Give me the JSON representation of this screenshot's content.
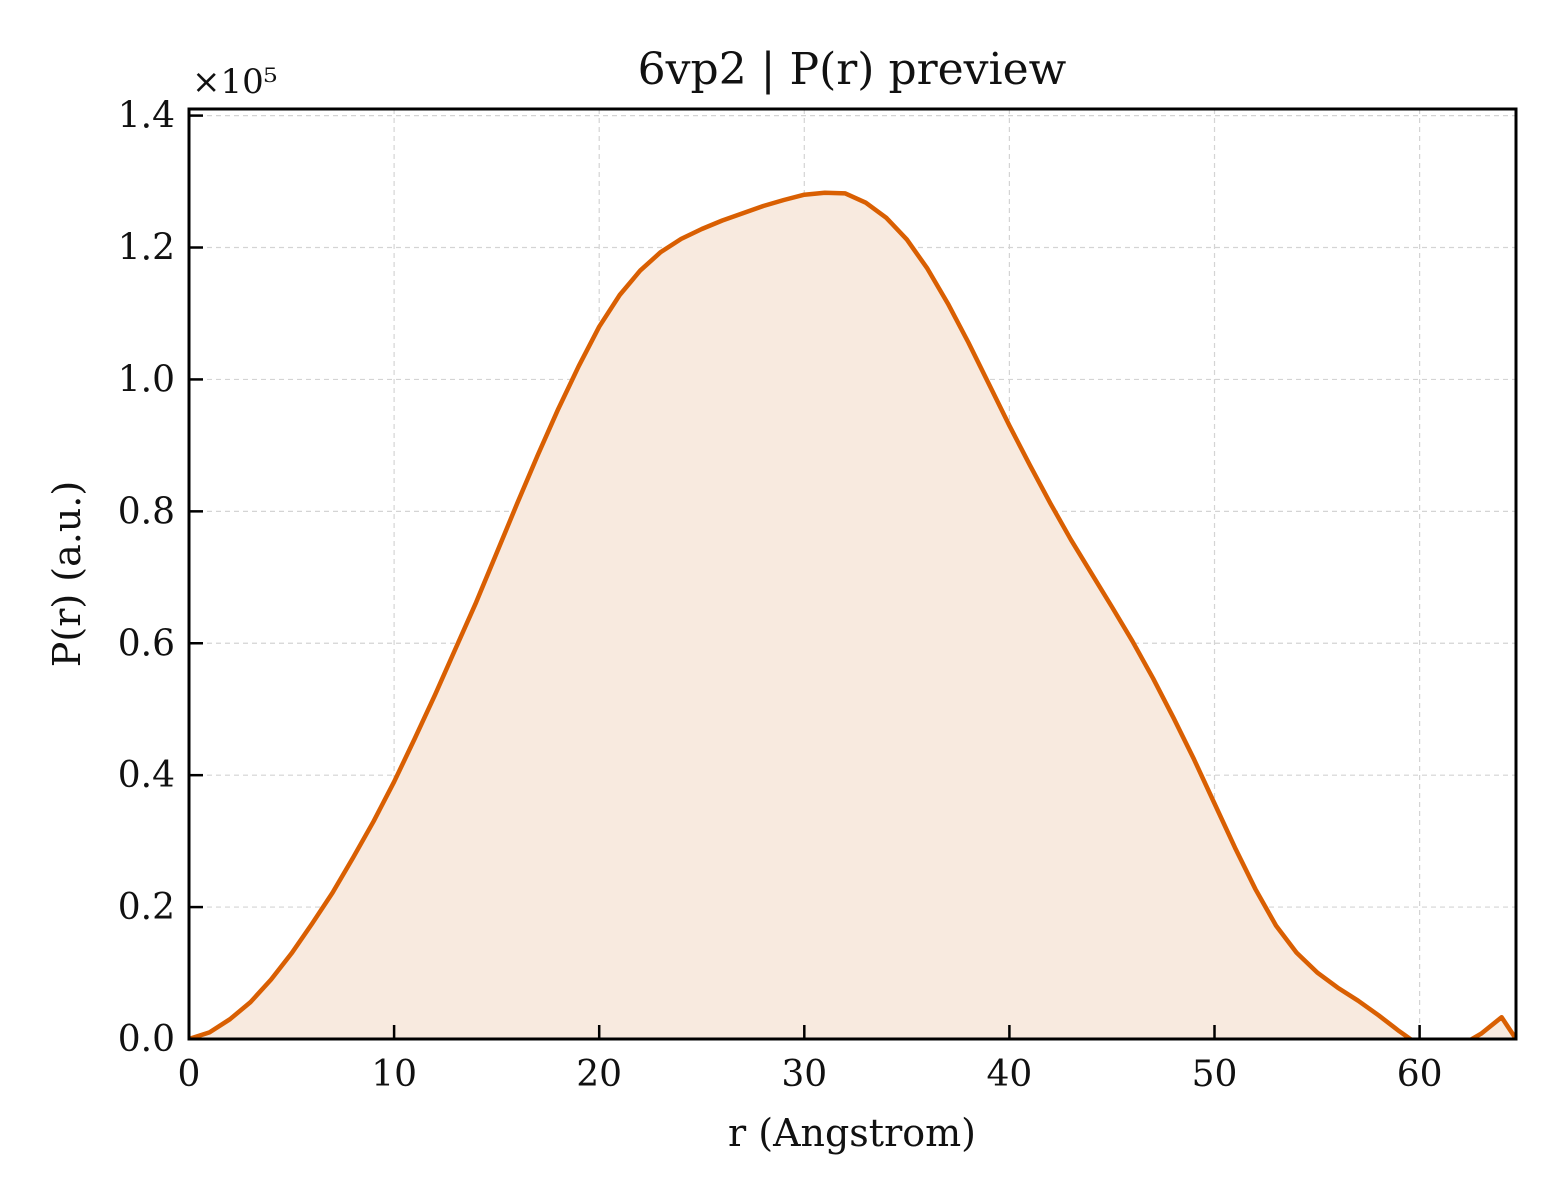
{
  "chart_data": {
    "type": "area",
    "title": "6vp2 | P(r) preview",
    "xlabel": "r (Angstrom)",
    "ylabel": "P(r) (a.u.)",
    "y_multiplier_label": "×10⁵",
    "xlim": [
      0,
      64.7
    ],
    "ylim": [
      0,
      1.41
    ],
    "x_ticks": [
      0,
      10,
      20,
      30,
      40,
      50,
      60
    ],
    "x_tick_labels": [
      "0",
      "10",
      "20",
      "30",
      "40",
      "50",
      "60"
    ],
    "y_ticks": [
      0.0,
      0.2,
      0.4,
      0.6,
      0.8,
      1.0,
      1.2,
      1.4
    ],
    "y_tick_labels": [
      "0.0",
      "0.2",
      "0.4",
      "0.6",
      "0.8",
      "1.0",
      "1.2",
      "1.4"
    ],
    "grid": true,
    "line_color": "#d95f02",
    "fill_color": "#f8eadf",
    "series": [
      {
        "x": [
          0,
          1,
          2,
          3,
          4,
          5,
          6,
          7,
          8,
          9,
          10,
          11,
          12,
          13,
          14,
          15,
          16,
          17,
          18,
          19,
          20,
          21,
          22,
          23,
          24,
          25,
          26,
          27,
          28,
          29,
          30,
          31,
          32,
          33,
          34,
          35,
          36,
          37,
          38,
          39,
          40,
          41,
          42,
          43,
          44,
          45,
          46,
          47,
          48,
          49,
          50,
          51,
          52,
          53,
          54,
          55,
          56,
          57,
          58,
          59,
          60,
          61,
          62,
          63,
          64,
          64.7
        ],
        "y": [
          0.0,
          0.01,
          0.03,
          0.056,
          0.09,
          0.13,
          0.175,
          0.222,
          0.275,
          0.33,
          0.39,
          0.455,
          0.522,
          0.592,
          0.662,
          0.737,
          0.812,
          0.885,
          0.955,
          1.02,
          1.08,
          1.128,
          1.165,
          1.193,
          1.213,
          1.228,
          1.241,
          1.252,
          1.263,
          1.272,
          1.28,
          1.283,
          1.282,
          1.268,
          1.245,
          1.212,
          1.168,
          1.115,
          1.056,
          0.993,
          0.93,
          0.87,
          0.812,
          0.757,
          0.706,
          0.655,
          0.603,
          0.547,
          0.487,
          0.424,
          0.357,
          0.29,
          0.227,
          0.172,
          0.131,
          0.101,
          0.078,
          0.058,
          0.036,
          0.012,
          -0.01,
          -0.02,
          -0.01,
          0.008,
          0.033,
          0.0
        ]
      }
    ]
  }
}
